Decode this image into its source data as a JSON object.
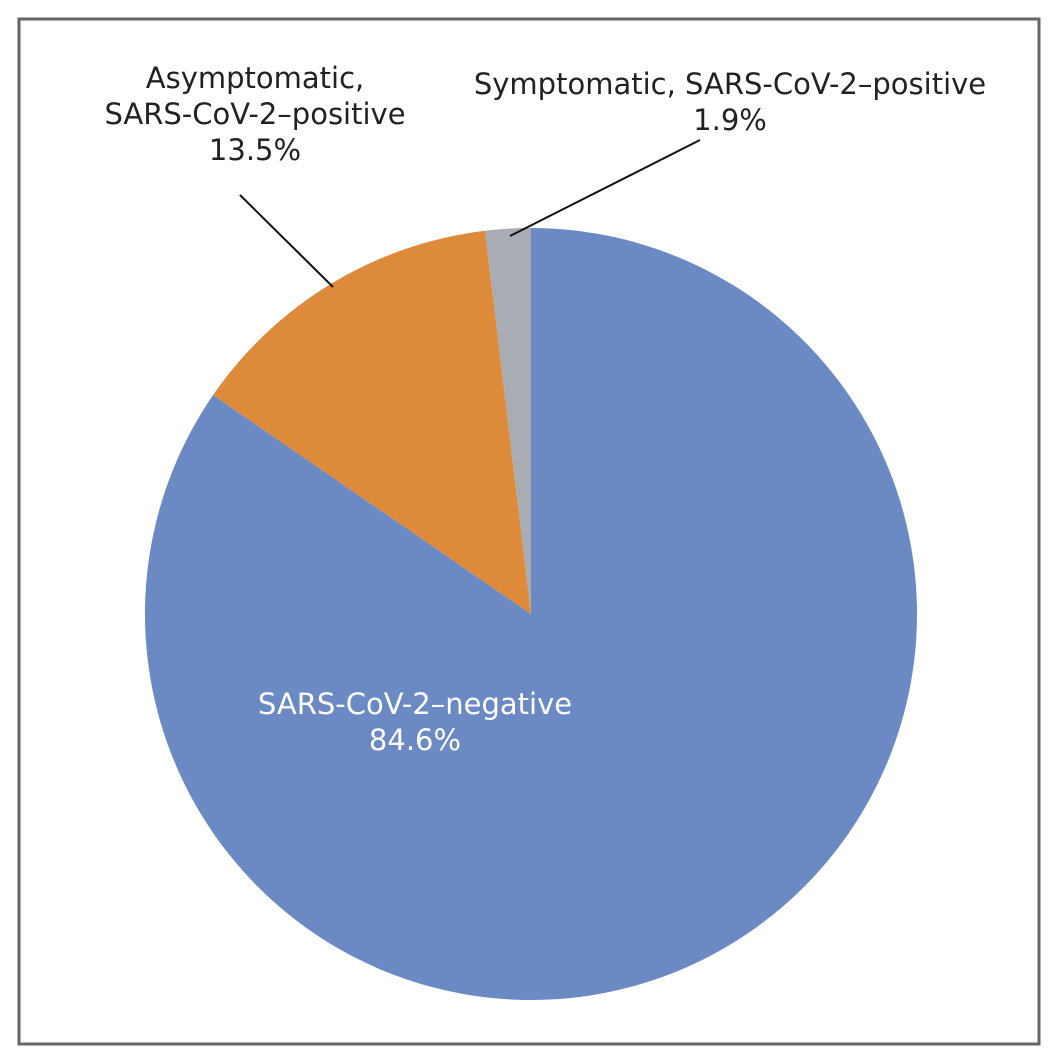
{
  "chart_data": {
    "type": "pie",
    "categories": [
      "SARS-CoV-2–negative",
      "Asymptomatic, SARS-CoV-2–positive",
      "Symptomatic, SARS-CoV-2–positive"
    ],
    "values": [
      84.6,
      13.5,
      1.9
    ],
    "value_labels": [
      "84.6%",
      "13.5%",
      "1.9%"
    ],
    "colors": [
      "#6b89c3",
      "#dd8a3b",
      "#a8acb3"
    ]
  }
}
